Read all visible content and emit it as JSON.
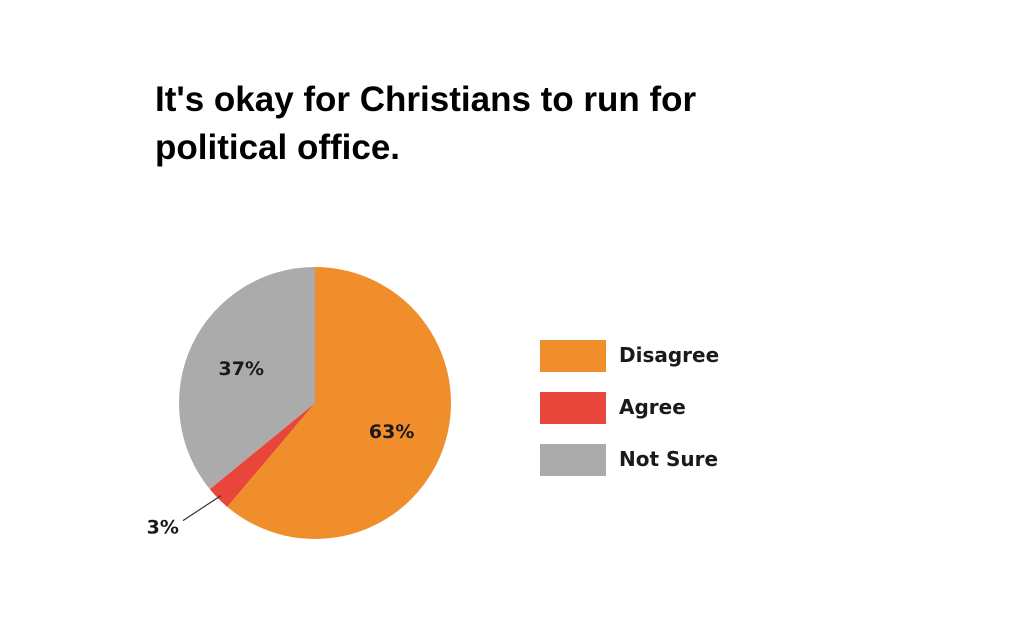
{
  "chart_data": {
    "type": "pie",
    "title": "It's okay for Christians to run for political office.",
    "categories": [
      "Disagree",
      "Agree",
      "Not Sure"
    ],
    "values": [
      63,
      3,
      37
    ],
    "value_labels": [
      "63%",
      "3%",
      "37%"
    ],
    "colors": [
      "#F18E2C",
      "#E8463B",
      "#ABABAB"
    ],
    "legend_position": "right",
    "start": "12 o'clock, clockwise"
  }
}
